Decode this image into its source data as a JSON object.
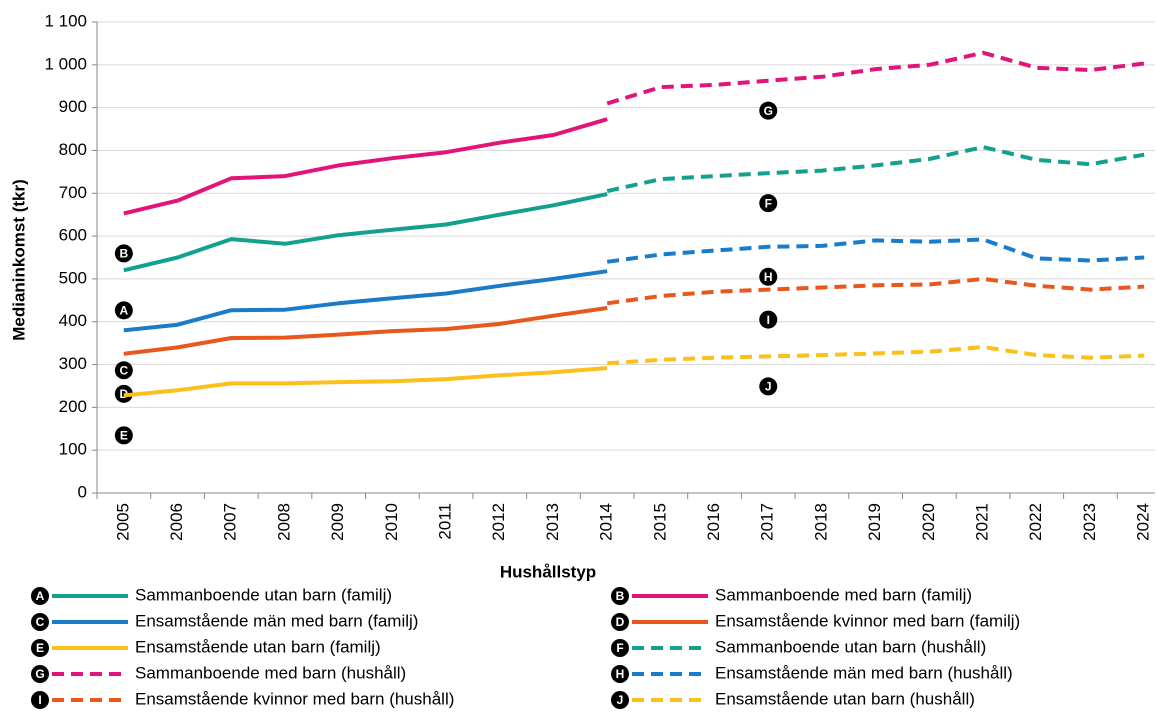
{
  "chart_data": {
    "type": "line",
    "x_label": "Hushållstyp",
    "y_label": "Medianinkomst (tkr)",
    "categories": [
      "2005",
      "2006",
      "2007",
      "2008",
      "2009",
      "2010",
      "2011",
      "2012",
      "2013",
      "2014",
      "2015",
      "2016",
      "2017",
      "2018",
      "2019",
      "2020",
      "2021",
      "2022",
      "2023",
      "2024"
    ],
    "ylim": [
      0,
      1100
    ],
    "yticks": [
      0,
      100,
      200,
      300,
      400,
      500,
      600,
      700,
      800,
      900,
      {
        "value": 1000,
        "label": "1 000"
      },
      {
        "value": 1100,
        "label": "1 100"
      }
    ],
    "grid": true,
    "series": [
      {
        "label": "A",
        "name": "Sammanboende utan barn (familj)",
        "color": "#13a08e",
        "dash": false,
        "values": [
          520,
          550,
          593,
          582,
          602,
          615,
          627,
          650,
          672,
          698,
          null,
          null,
          null,
          null,
          null,
          null,
          null,
          null,
          null,
          null
        ]
      },
      {
        "label": "B",
        "name": "Sammanboende med barn (familj)",
        "color": "#e2147a",
        "dash": false,
        "values": [
          653,
          683,
          735,
          740,
          765,
          782,
          796,
          818,
          836,
          873,
          null,
          null,
          null,
          null,
          null,
          null,
          null,
          null,
          null,
          null
        ]
      },
      {
        "label": "C",
        "name": "Ensamstående män med barn (familj)",
        "color": "#1a7cc9",
        "dash": false,
        "values": [
          380,
          393,
          427,
          428,
          443,
          455,
          466,
          484,
          500,
          518,
          null,
          null,
          null,
          null,
          null,
          null,
          null,
          null,
          null,
          null
        ]
      },
      {
        "label": "D",
        "name": "Ensamstående kvinnor med barn (familj)",
        "color": "#e8571c",
        "dash": false,
        "values": [
          325,
          340,
          362,
          363,
          370,
          378,
          383,
          395,
          414,
          432,
          null,
          null,
          null,
          null,
          null,
          null,
          null,
          null,
          null,
          null
        ]
      },
      {
        "label": "E",
        "name": "Ensamstående utan barn (familj)",
        "color": "#fcc01a",
        "dash": false,
        "values": [
          228,
          240,
          256,
          256,
          259,
          261,
          266,
          275,
          282,
          292,
          null,
          null,
          null,
          null,
          null,
          null,
          null,
          null,
          null,
          null
        ]
      },
      {
        "label": "F",
        "name": "Sammanboende utan barn (hushåll)",
        "color": "#13a08e",
        "dash": true,
        "values": [
          null,
          null,
          null,
          null,
          null,
          null,
          null,
          null,
          null,
          705,
          733,
          740,
          747,
          753,
          765,
          780,
          808,
          778,
          768,
          790
        ]
      },
      {
        "label": "G",
        "name": "Sammanboende med barn (hushåll)",
        "color": "#e2147a",
        "dash": true,
        "values": [
          null,
          null,
          null,
          null,
          null,
          null,
          null,
          null,
          null,
          910,
          948,
          953,
          963,
          972,
          990,
          1000,
          1028,
          993,
          988,
          1003
        ]
      },
      {
        "label": "H",
        "name": "Ensamstående män med barn (hushåll)",
        "color": "#1a7cc9",
        "dash": true,
        "values": [
          null,
          null,
          null,
          null,
          null,
          null,
          null,
          null,
          null,
          540,
          557,
          566,
          575,
          577,
          590,
          587,
          592,
          548,
          543,
          550
        ]
      },
      {
        "label": "I",
        "name": "Ensamstående kvinnor med barn (hushåll)",
        "color": "#e8571c",
        "dash": true,
        "values": [
          null,
          null,
          null,
          null,
          null,
          null,
          null,
          null,
          null,
          443,
          460,
          470,
          475,
          480,
          485,
          487,
          500,
          484,
          475,
          482
        ]
      },
      {
        "label": "J",
        "name": "Ensamstående utan barn (hushåll)",
        "color": "#fcc01a",
        "dash": true,
        "values": [
          null,
          null,
          null,
          null,
          null,
          null,
          null,
          null,
          null,
          303,
          311,
          316,
          319,
          322,
          326,
          330,
          341,
          322,
          316,
          321
        ]
      }
    ]
  }
}
